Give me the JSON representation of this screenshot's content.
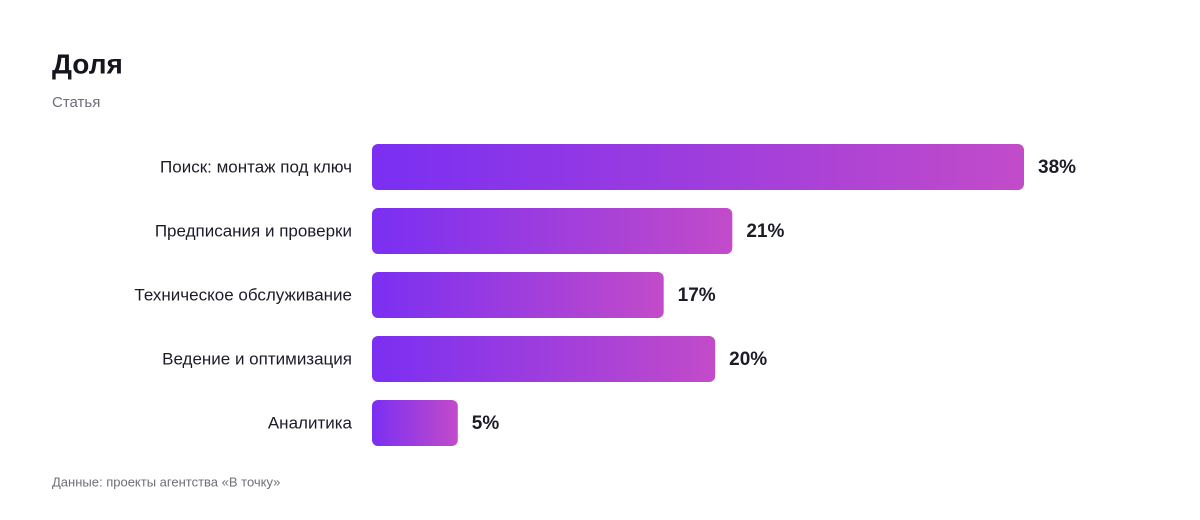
{
  "chart_data": {
    "type": "bar",
    "orientation": "horizontal",
    "title": "Доля",
    "subtitle": "Статья",
    "categories": [
      "Поиск: монтаж под ключ",
      "Предписания и проверки",
      "Техническое обслуживание",
      "Ведение и оптимизация",
      "Аналитика"
    ],
    "values": [
      38,
      21,
      17,
      20,
      5
    ],
    "value_labels": [
      "38%",
      "21%",
      "17%",
      "20%",
      "5%"
    ],
    "gradient": [
      "#7a2ff2",
      "#c24bc9"
    ],
    "source": "Данные: проекты агентства «В точку»"
  }
}
